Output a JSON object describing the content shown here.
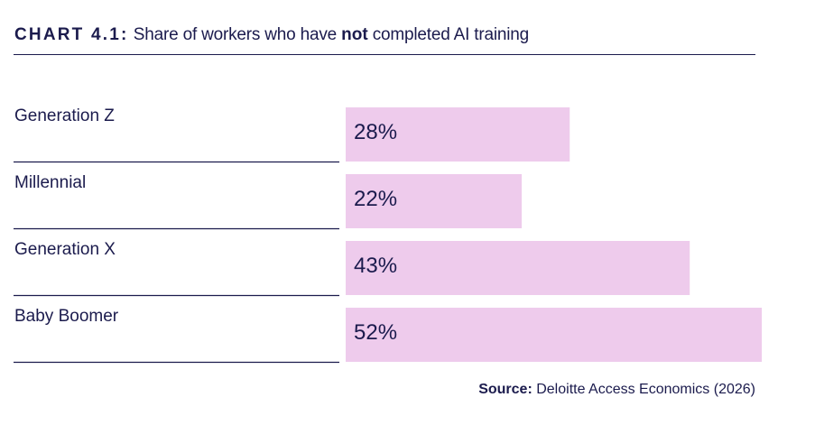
{
  "header": {
    "label": "CHART 4.1:",
    "title_pre": "Share of workers who have ",
    "title_bold": "not",
    "title_post": " completed AI training"
  },
  "chart_data": {
    "type": "bar",
    "orientation": "horizontal",
    "title": "Share of workers who have not completed AI training",
    "categories": [
      "Generation Z",
      "Millennial",
      "Generation X",
      "Baby Boomer"
    ],
    "values": [
      28,
      22,
      43,
      52
    ],
    "value_labels": [
      "28%",
      "22%",
      "43%",
      "52%"
    ],
    "unit": "%",
    "xlim": [
      0,
      52
    ],
    "xlabel": "",
    "ylabel": "",
    "grid": false,
    "legend": "none"
  },
  "source": {
    "label": "Source:",
    "text": " Deloitte Access Economics (2026)"
  },
  "colors": {
    "bar": "#eecbec",
    "text": "#1b1b4d",
    "rule": "#1b1b4d"
  }
}
